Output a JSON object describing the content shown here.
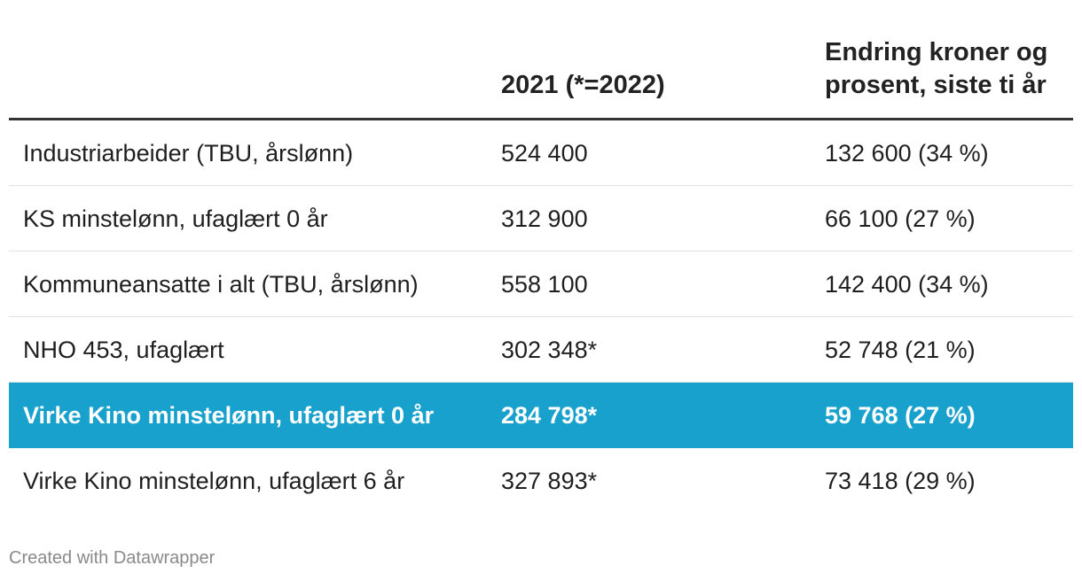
{
  "chart_data": {
    "type": "table",
    "columns": [
      "",
      "2021 (*=2022)",
      "Endring kroner og prosent, siste ti år"
    ],
    "rows": [
      {
        "label": "Industriarbeider (TBU, årslønn)",
        "value": "524 400",
        "change": "132 600 (34 %)",
        "highlight": false
      },
      {
        "label": "KS minstelønn, ufaglært 0 år",
        "value": "312 900",
        "change": "66 100 (27 %)",
        "highlight": false
      },
      {
        "label": "Kommuneansatte i alt (TBU, årslønn)",
        "value": "558 100",
        "change": "142 400 (34 %)",
        "highlight": false
      },
      {
        "label": "NHO 453, ufaglært",
        "value": "302 348*",
        "change": "52 748 (21 %)",
        "highlight": false
      },
      {
        "label": "Virke Kino minstelønn, ufaglært 0 år",
        "value": "284 798*",
        "change": "59 768 (27 %)",
        "highlight": true
      },
      {
        "label": "Virke Kino minstelønn, ufaglært 6 år",
        "value": "327 893*",
        "change": "73 418 (29 %)",
        "highlight": false
      }
    ],
    "highlight_color": "#18a1cd"
  },
  "footer": {
    "credit": "Created with Datawrapper"
  }
}
